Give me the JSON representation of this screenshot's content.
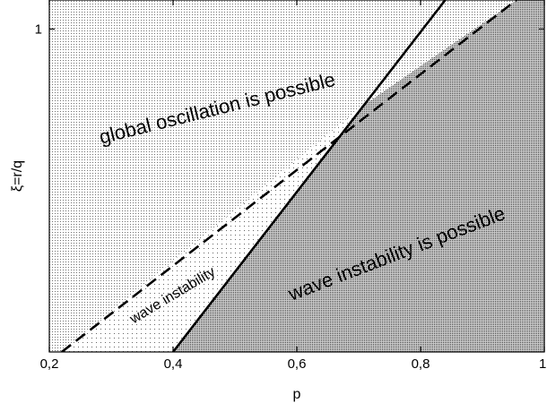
{
  "chart_data": {
    "type": "area",
    "title": "",
    "xlabel": "p",
    "ylabel": "ξ=r/q",
    "xlim": [
      0.2,
      1.0
    ],
    "ylim": [
      0.0,
      1.09
    ],
    "x_ticks": [
      0.2,
      0.4,
      0.6,
      0.8,
      1.0
    ],
    "x_tick_labels": [
      "0,2",
      "0,4",
      "0,6",
      "0,8",
      "1"
    ],
    "y_ticks": [
      1.0
    ],
    "y_tick_labels": [
      "1"
    ],
    "series": [
      {
        "style": "solid",
        "points": [
          [
            0.4,
            0.0
          ],
          [
            0.84,
            1.09
          ]
        ]
      },
      {
        "style": "dashed",
        "points": [
          [
            0.22,
            0.0
          ],
          [
            0.955,
            1.09
          ]
        ]
      }
    ],
    "intersection": [
      0.705,
      0.76
    ],
    "regions": [
      {
        "label": "global oscillation is possible",
        "fill": "light-dotted"
      },
      {
        "label": "wave instability",
        "fill": "sparse-dotted"
      },
      {
        "label": "wave instability is possible",
        "fill": "dense-dotted"
      }
    ],
    "grid": false,
    "legend": "none"
  },
  "colors": {
    "background": "#ffffff",
    "line": "#000000",
    "dot": "#000000"
  }
}
